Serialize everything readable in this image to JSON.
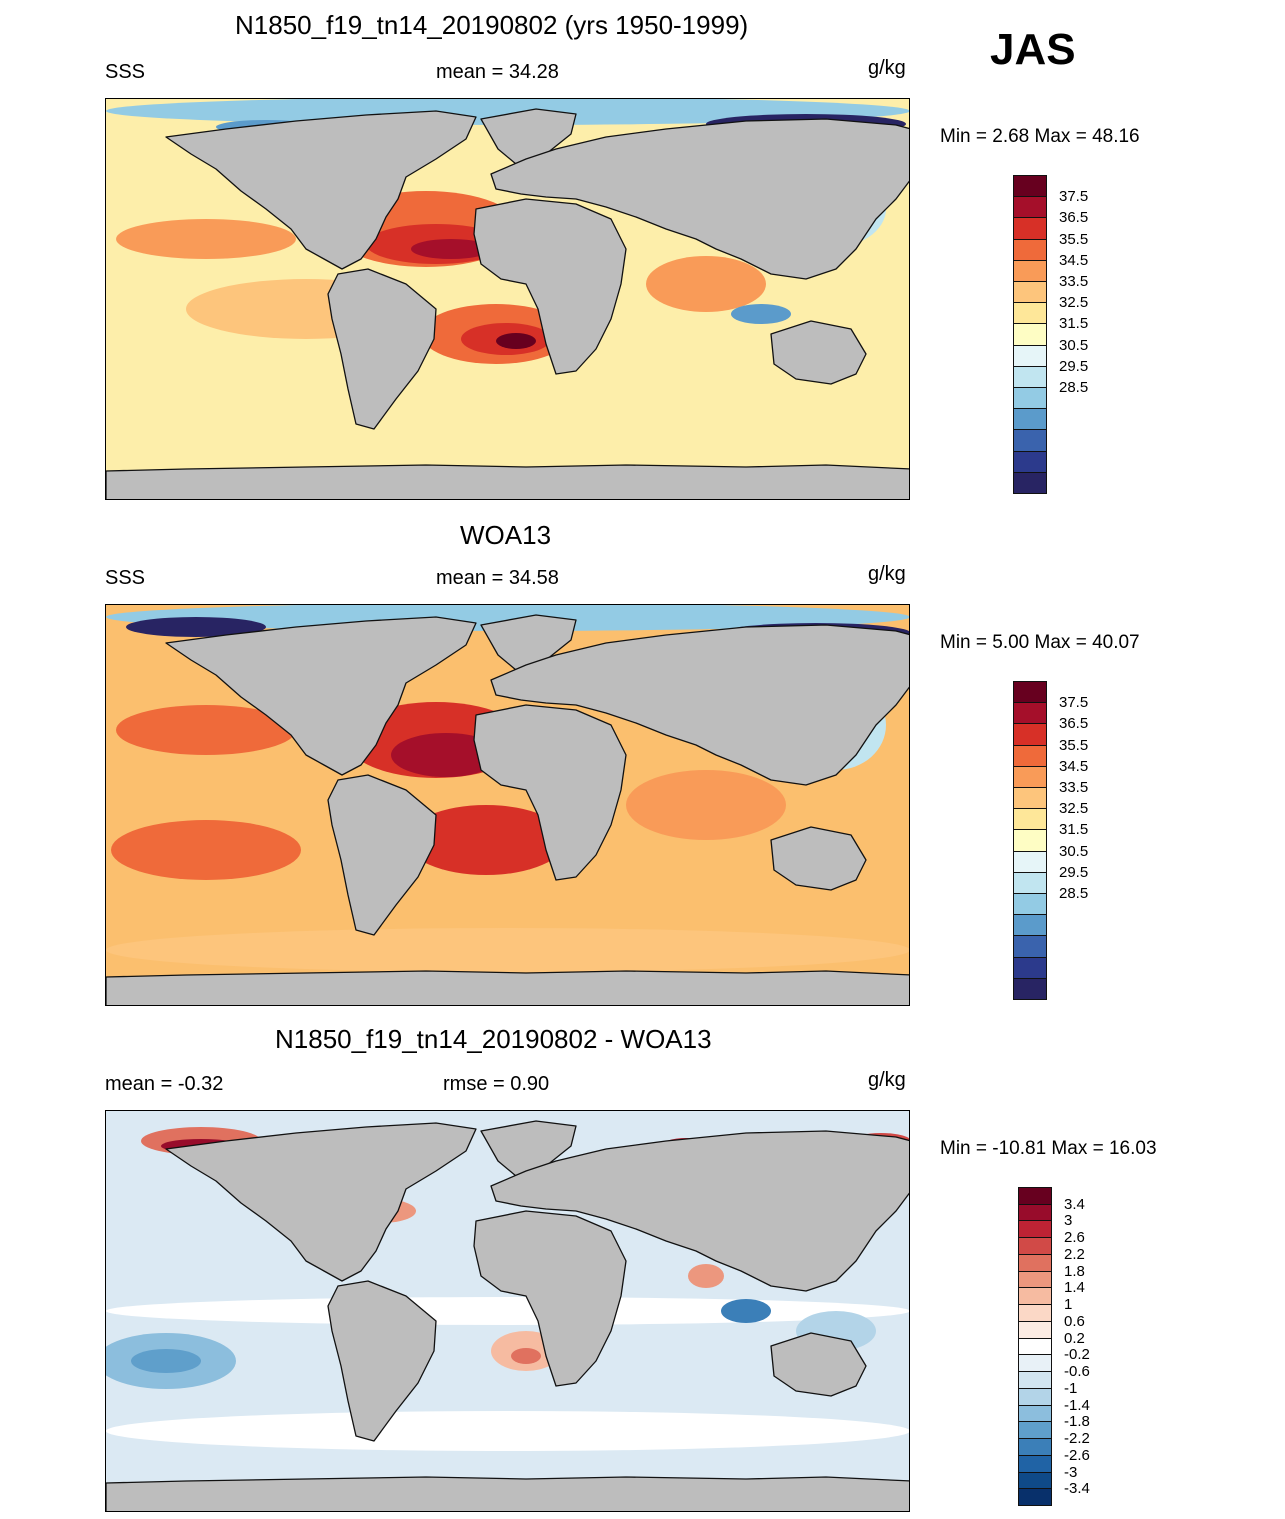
{
  "season": "JAS",
  "colors": {
    "land": "#bdbdbd",
    "coast": "#111111"
  },
  "panels": [
    {
      "id": "model",
      "title": "N1850_f19_tn14_20190802 (yrs 1950-1999)",
      "left_label": "SSS",
      "center_label": "mean =  34.28",
      "units": "g/kg",
      "minmax": "Min =   2.68 Max =  48.16",
      "map": {
        "ocean_base": "#fdeeaa",
        "variant": "model"
      }
    },
    {
      "id": "obs",
      "title": "WOA13",
      "left_label": "SSS",
      "center_label": "mean =  34.58",
      "units": "g/kg",
      "minmax": "Min =   5.00 Max =  40.07",
      "map": {
        "ocean_base": "#fbbf6e",
        "variant": "obs"
      }
    },
    {
      "id": "diff",
      "title": "N1850_f19_tn14_20190802 - WOA13",
      "left_label": "mean =  -0.32",
      "center_label": "rmse =   0.90",
      "units": "g/kg",
      "minmax": "Min = -10.81 Max =  16.03",
      "map": {
        "ocean_base": "#dbe9f3",
        "variant": "diff"
      }
    }
  ],
  "colorbars": [
    {
      "id": "abs",
      "labels": [
        "37.5",
        "36.5",
        "35.5",
        "34.5",
        "33.5",
        "32.5",
        "31.5",
        "30.5",
        "29.5",
        "28.5"
      ],
      "colors": [
        "#67001f",
        "#a50f2a",
        "#d73027",
        "#ef6a3a",
        "#f99b58",
        "#fdc57c",
        "#fee799",
        "#fefdc4",
        "#e6f5f8",
        "#c1e5f0",
        "#93cbe4",
        "#5b9bcb",
        "#3a63ad",
        "#2c3a8c",
        "#282463"
      ]
    },
    {
      "id": "diff",
      "labels": [
        "3.4",
        "3",
        "2.6",
        "2.2",
        "1.8",
        "1.4",
        "1",
        "0.6",
        "0.2",
        "-0.2",
        "-0.6",
        "-1",
        "-1.4",
        "-1.8",
        "-2.2",
        "-2.6",
        "-3",
        "-3.4"
      ],
      "colors": [
        "#67001f",
        "#980c2b",
        "#bd2334",
        "#d14a47",
        "#e0715f",
        "#ec977e",
        "#f6bba1",
        "#fbd8c6",
        "#fcece3",
        "#ffffff",
        "#e8f1f7",
        "#d2e5f0",
        "#b3d4e8",
        "#8cbedd",
        "#5f9fcb",
        "#3b7fb8",
        "#2063a5",
        "#0f4a88",
        "#08306b"
      ]
    }
  ]
}
